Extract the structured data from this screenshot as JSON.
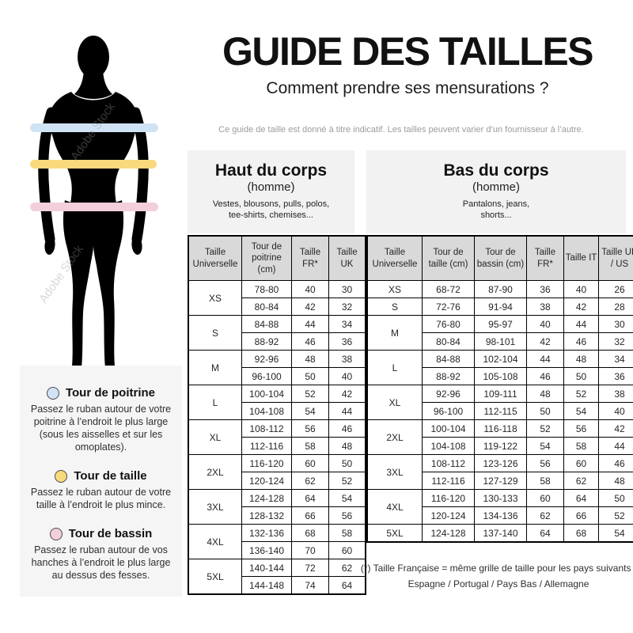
{
  "page": {
    "title": "GUIDE DES TAILLES",
    "subtitle": "Comment prendre ses mensurations ?",
    "disclaimer": "Ce guide de taille est donné à titre indicatif. Les tailles peuvent varier d’un fournisseur à l’autre.",
    "watermark": "Adobe Stock"
  },
  "colors": {
    "header_cell": "#d9d9d9",
    "chest_cell": "#d8e8f6",
    "waist_cell": "#fbdf94",
    "hip_cell": "#efd2de",
    "chest_band": "#cfe3f4",
    "waist_band": "#f8da7d",
    "hip_band": "#f3cfdc"
  },
  "legend": {
    "items": [
      {
        "title": "Tour de poitrine",
        "description": "Passez le ruban autour de votre poitrine à l’endroit le plus large (sous les aisselles et sur les omoplates)."
      },
      {
        "title": "Tour de taille",
        "description": "Passez le ruban autour de votre taille à l’endroit le plus mince."
      },
      {
        "title": "Tour de bassin",
        "description": "Passez le ruban autour de vos hanches à l’endroit le plus large au dessus des fesses."
      }
    ]
  },
  "upper_table": {
    "section_title": "Haut du corps",
    "section_subtitle": "(homme)",
    "section_note": "Vestes, blousons, pulls, polos,\ntee-shirts, chemises...",
    "headers": [
      "Taille Universelle",
      "Tour de poitrine (cm)",
      "Taille FR*",
      "Taille UK"
    ],
    "rows": [
      {
        "size": "XS",
        "entries": [
          [
            "78-80",
            "40",
            "30"
          ],
          [
            "80-84",
            "42",
            "32"
          ]
        ]
      },
      {
        "size": "S",
        "entries": [
          [
            "84-88",
            "44",
            "34"
          ],
          [
            "88-92",
            "46",
            "36"
          ]
        ]
      },
      {
        "size": "M",
        "entries": [
          [
            "92-96",
            "48",
            "38"
          ],
          [
            "96-100",
            "50",
            "40"
          ]
        ]
      },
      {
        "size": "L",
        "entries": [
          [
            "100-104",
            "52",
            "42"
          ],
          [
            "104-108",
            "54",
            "44"
          ]
        ]
      },
      {
        "size": "XL",
        "entries": [
          [
            "108-112",
            "56",
            "46"
          ],
          [
            "112-116",
            "58",
            "48"
          ]
        ]
      },
      {
        "size": "2XL",
        "entries": [
          [
            "116-120",
            "60",
            "50"
          ],
          [
            "120-124",
            "62",
            "52"
          ]
        ]
      },
      {
        "size": "3XL",
        "entries": [
          [
            "124-128",
            "64",
            "54"
          ],
          [
            "128-132",
            "66",
            "56"
          ]
        ]
      },
      {
        "size": "4XL",
        "entries": [
          [
            "132-136",
            "68",
            "58"
          ],
          [
            "136-140",
            "70",
            "60"
          ]
        ]
      },
      {
        "size": "5XL",
        "entries": [
          [
            "140-144",
            "72",
            "62"
          ],
          [
            "144-148",
            "74",
            "64"
          ]
        ]
      }
    ]
  },
  "lower_table": {
    "section_title": "Bas du corps",
    "section_subtitle": "(homme)",
    "section_note": "Pantalons, jeans,\nshorts...",
    "headers": [
      "Taille Universelle",
      "Tour de taille (cm)",
      "Tour de bassin (cm)",
      "Taille FR*",
      "Taille IT",
      "Taille UK / US"
    ],
    "rows": [
      {
        "size": "XS",
        "entries": [
          [
            "68-72",
            "87-90",
            "36",
            "40",
            "26"
          ]
        ]
      },
      {
        "size": "S",
        "entries": [
          [
            "72-76",
            "91-94",
            "38",
            "42",
            "28"
          ]
        ]
      },
      {
        "size": "M",
        "entries": [
          [
            "76-80",
            "95-97",
            "40",
            "44",
            "30"
          ],
          [
            "80-84",
            "98-101",
            "42",
            "46",
            "32"
          ]
        ]
      },
      {
        "size": "L",
        "entries": [
          [
            "84-88",
            "102-104",
            "44",
            "48",
            "34"
          ],
          [
            "88-92",
            "105-108",
            "46",
            "50",
            "36"
          ]
        ]
      },
      {
        "size": "XL",
        "entries": [
          [
            "92-96",
            "109-111",
            "48",
            "52",
            "38"
          ],
          [
            "96-100",
            "112-115",
            "50",
            "54",
            "40"
          ]
        ]
      },
      {
        "size": "2XL",
        "entries": [
          [
            "100-104",
            "116-118",
            "52",
            "56",
            "42"
          ],
          [
            "104-108",
            "119-122",
            "54",
            "58",
            "44"
          ]
        ]
      },
      {
        "size": "3XL",
        "entries": [
          [
            "108-112",
            "123-126",
            "56",
            "60",
            "46"
          ],
          [
            "112-116",
            "127-129",
            "58",
            "62",
            "48"
          ]
        ]
      },
      {
        "size": "4XL",
        "entries": [
          [
            "116-120",
            "130-133",
            "60",
            "64",
            "50"
          ],
          [
            "120-124",
            "134-136",
            "62",
            "66",
            "52"
          ]
        ]
      },
      {
        "size": "5XL",
        "entries": [
          [
            "124-128",
            "137-140",
            "64",
            "68",
            "54"
          ]
        ]
      }
    ]
  },
  "footnote": {
    "line1": "(*) Taille Française = même grille de taille pour les pays suivants :",
    "line2": "Espagne / Portugal / Pays Bas / Allemagne"
  }
}
